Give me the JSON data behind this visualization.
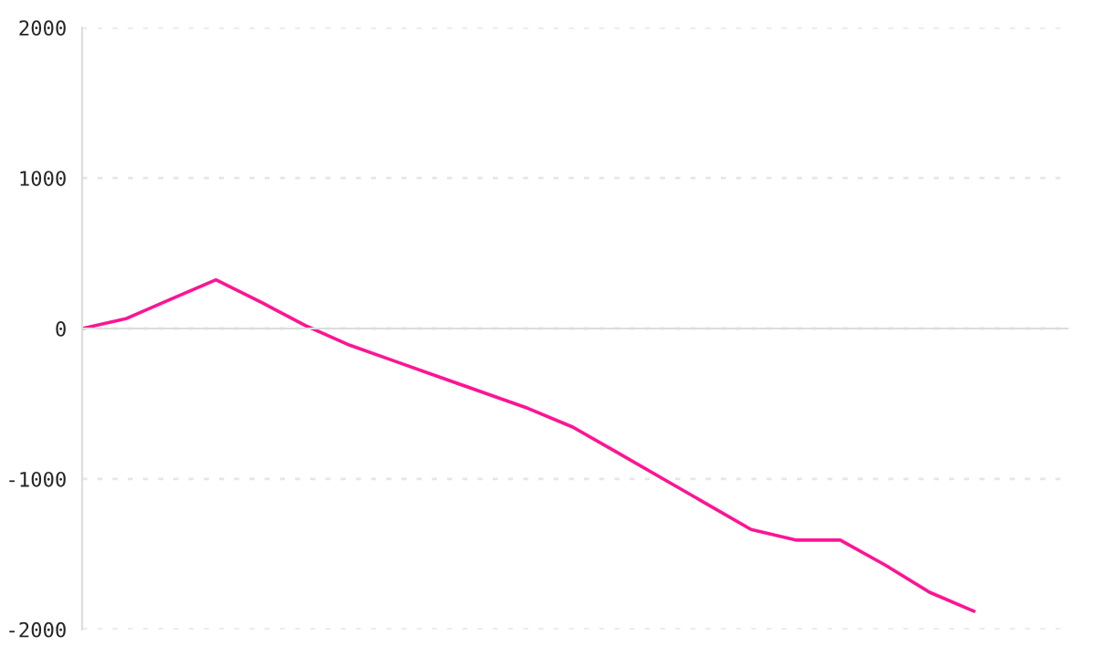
{
  "chart_data": {
    "type": "line",
    "categories": [
      null,
      null,
      null,
      null,
      null,
      null,
      null,
      null,
      null,
      null,
      null,
      null,
      null,
      null,
      null,
      null,
      null,
      null,
      null,
      null,
      null
    ],
    "series": [
      {
        "color": "#ff1493",
        "values": [
          0,
          67,
          196,
          324,
          176,
          20,
          -111,
          -216,
          -321,
          -426,
          -531,
          -655,
          -824,
          -995,
          -1165,
          -1336,
          -1406,
          -1406,
          -1571,
          -1753,
          -1879
        ]
      }
    ],
    "ylim": [
      -2000,
      2000
    ],
    "yticks": [
      -2000,
      -1000,
      0,
      1000,
      2000
    ],
    "grid": "y",
    "tick_labels": "y",
    "marker": "none",
    "line_style": "solid"
  }
}
